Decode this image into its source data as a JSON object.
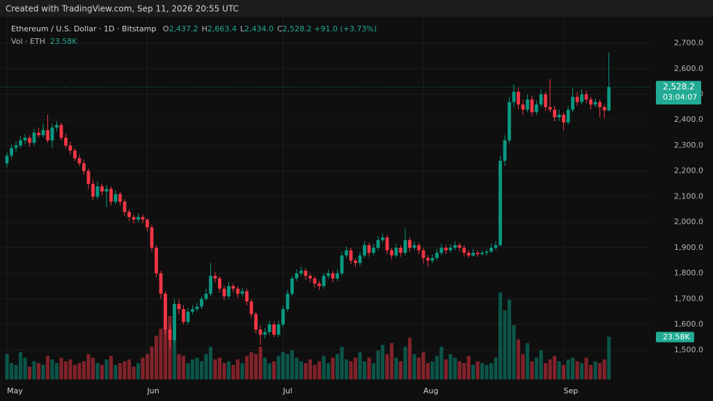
{
  "chart_data": {
    "type": "candlestick",
    "watermark": "Created with TradingView.com, Sep 11, 2026 20:55 UTC",
    "title": "Ethereum / U.S. Dollar · 1D · Bitstamp",
    "legend": {
      "labels": [
        "O",
        "H",
        "L",
        "C"
      ],
      "value_labels": [
        "2,437.2",
        "2,663.4",
        "2,434.0",
        "2,528.2"
      ],
      "change_label": "+91.0 (+3.73%)"
    },
    "volume_title": "Vol · ETH",
    "volume_label": "23.58K",
    "last_price_label": "2,528.2",
    "countdown": "03:04:07",
    "up_color": "#089981",
    "down_color": "#f23645",
    "ylim": [
      1385,
      2760
    ],
    "yticks": [
      {
        "value": 1500,
        "label": "1,500.0"
      },
      {
        "value": 1600,
        "label": "1,600.0"
      },
      {
        "value": 1700,
        "label": "1,700.0"
      },
      {
        "value": 1800,
        "label": "1,800.0"
      },
      {
        "value": 1900,
        "label": "1,900.0"
      },
      {
        "value": 2000,
        "label": "2,000.0"
      },
      {
        "value": 2100,
        "label": "2,100.0"
      },
      {
        "value": 2200,
        "label": "2,200.0"
      },
      {
        "value": 2300,
        "label": "2,300.0"
      },
      {
        "value": 2400,
        "label": "2,400.0"
      },
      {
        "value": 2500,
        "label": "2,500.0"
      },
      {
        "value": 2600,
        "label": "2,600.0"
      },
      {
        "value": 2700,
        "label": "2,700.0"
      }
    ],
    "xticks": [
      {
        "value": 0,
        "label": "May"
      },
      {
        "value": 31,
        "label": "Jun"
      },
      {
        "value": 61,
        "label": "Jul"
      },
      {
        "value": 92,
        "label": "Aug"
      },
      {
        "value": 123,
        "label": "Sep"
      }
    ],
    "ohlc": [
      [
        2230,
        2275,
        2215,
        2260
      ],
      [
        2260,
        2305,
        2250,
        2290
      ],
      [
        2290,
        2315,
        2275,
        2300
      ],
      [
        2300,
        2335,
        2290,
        2320
      ],
      [
        2320,
        2345,
        2305,
        2330
      ],
      [
        2330,
        2340,
        2295,
        2310
      ],
      [
        2310,
        2365,
        2300,
        2350
      ],
      [
        2350,
        2370,
        2330,
        2340
      ],
      [
        2340,
        2385,
        2330,
        2360
      ],
      [
        2360,
        2420,
        2310,
        2320
      ],
      [
        2320,
        2385,
        2290,
        2370
      ],
      [
        2370,
        2395,
        2355,
        2380
      ],
      [
        2380,
        2390,
        2320,
        2330
      ],
      [
        2330,
        2345,
        2290,
        2300
      ],
      [
        2300,
        2315,
        2265,
        2280
      ],
      [
        2280,
        2290,
        2240,
        2250
      ],
      [
        2250,
        2265,
        2220,
        2230
      ],
      [
        2230,
        2245,
        2185,
        2200
      ],
      [
        2200,
        2210,
        2130,
        2150
      ],
      [
        2150,
        2165,
        2085,
        2100
      ],
      [
        2100,
        2160,
        2090,
        2140
      ],
      [
        2140,
        2150,
        2105,
        2120
      ],
      [
        2120,
        2145,
        2060,
        2130
      ],
      [
        2130,
        2140,
        2065,
        2080
      ],
      [
        2080,
        2125,
        2070,
        2110
      ],
      [
        2110,
        2120,
        2065,
        2080
      ],
      [
        2080,
        2090,
        2025,
        2040
      ],
      [
        2040,
        2050,
        2005,
        2020
      ],
      [
        2020,
        2030,
        1995,
        2010
      ],
      [
        2010,
        2035,
        2000,
        2020
      ],
      [
        2020,
        2030,
        1995,
        2010
      ],
      [
        2010,
        2015,
        1965,
        1980
      ],
      [
        1980,
        1990,
        1885,
        1900
      ],
      [
        1900,
        1910,
        1785,
        1800
      ],
      [
        1800,
        1810,
        1700,
        1720
      ],
      [
        1720,
        1730,
        1560,
        1580
      ],
      [
        1580,
        1600,
        1510,
        1540
      ],
      [
        1540,
        1700,
        1530,
        1680
      ],
      [
        1680,
        1700,
        1640,
        1660
      ],
      [
        1660,
        1675,
        1600,
        1610
      ],
      [
        1610,
        1665,
        1600,
        1650
      ],
      [
        1650,
        1675,
        1640,
        1660
      ],
      [
        1660,
        1685,
        1650,
        1670
      ],
      [
        1670,
        1710,
        1660,
        1700
      ],
      [
        1700,
        1740,
        1690,
        1720
      ],
      [
        1720,
        1840,
        1710,
        1790
      ],
      [
        1790,
        1805,
        1765,
        1780
      ],
      [
        1780,
        1790,
        1725,
        1740
      ],
      [
        1740,
        1750,
        1695,
        1710
      ],
      [
        1710,
        1765,
        1700,
        1750
      ],
      [
        1750,
        1760,
        1725,
        1740
      ],
      [
        1740,
        1750,
        1705,
        1720
      ],
      [
        1720,
        1745,
        1710,
        1730
      ],
      [
        1730,
        1740,
        1675,
        1690
      ],
      [
        1690,
        1700,
        1625,
        1640
      ],
      [
        1640,
        1650,
        1565,
        1580
      ],
      [
        1580,
        1595,
        1520,
        1560
      ],
      [
        1560,
        1585,
        1545,
        1570
      ],
      [
        1570,
        1615,
        1560,
        1600
      ],
      [
        1600,
        1610,
        1550,
        1560
      ],
      [
        1560,
        1615,
        1550,
        1600
      ],
      [
        1600,
        1675,
        1590,
        1660
      ],
      [
        1660,
        1735,
        1650,
        1720
      ],
      [
        1720,
        1790,
        1710,
        1780
      ],
      [
        1780,
        1815,
        1770,
        1800
      ],
      [
        1800,
        1825,
        1790,
        1810
      ],
      [
        1810,
        1820,
        1775,
        1790
      ],
      [
        1790,
        1800,
        1765,
        1780
      ],
      [
        1780,
        1790,
        1745,
        1760
      ],
      [
        1760,
        1770,
        1735,
        1750
      ],
      [
        1750,
        1800,
        1740,
        1790
      ],
      [
        1790,
        1815,
        1780,
        1800
      ],
      [
        1800,
        1810,
        1765,
        1780
      ],
      [
        1780,
        1815,
        1770,
        1800
      ],
      [
        1800,
        1885,
        1790,
        1870
      ],
      [
        1870,
        1905,
        1860,
        1890
      ],
      [
        1890,
        1900,
        1835,
        1850
      ],
      [
        1850,
        1860,
        1825,
        1840
      ],
      [
        1840,
        1885,
        1830,
        1870
      ],
      [
        1870,
        1925,
        1860,
        1910
      ],
      [
        1910,
        1920,
        1865,
        1880
      ],
      [
        1880,
        1915,
        1870,
        1900
      ],
      [
        1900,
        1945,
        1890,
        1930
      ],
      [
        1930,
        1955,
        1920,
        1940
      ],
      [
        1940,
        1950,
        1875,
        1890
      ],
      [
        1890,
        1900,
        1855,
        1870
      ],
      [
        1870,
        1915,
        1860,
        1900
      ],
      [
        1900,
        1910,
        1865,
        1880
      ],
      [
        1880,
        1975,
        1870,
        1930
      ],
      [
        1930,
        1940,
        1885,
        1900
      ],
      [
        1900,
        1925,
        1890,
        1910
      ],
      [
        1910,
        1920,
        1875,
        1890
      ],
      [
        1890,
        1900,
        1840,
        1860
      ],
      [
        1860,
        1870,
        1825,
        1850
      ],
      [
        1850,
        1875,
        1840,
        1860
      ],
      [
        1860,
        1895,
        1850,
        1880
      ],
      [
        1880,
        1915,
        1870,
        1900
      ],
      [
        1900,
        1910,
        1875,
        1890
      ],
      [
        1890,
        1915,
        1880,
        1900
      ],
      [
        1900,
        1925,
        1890,
        1910
      ],
      [
        1910,
        1920,
        1885,
        1900
      ],
      [
        1900,
        1910,
        1865,
        1880
      ],
      [
        1880,
        1890,
        1860,
        1870
      ],
      [
        1870,
        1895,
        1865,
        1880
      ],
      [
        1880,
        1890,
        1865,
        1875
      ],
      [
        1875,
        1890,
        1870,
        1880
      ],
      [
        1880,
        1895,
        1870,
        1885
      ],
      [
        1885,
        1915,
        1880,
        1900
      ],
      [
        1900,
        1925,
        1890,
        1910
      ],
      [
        1910,
        2260,
        1905,
        2240
      ],
      [
        2240,
        2340,
        2220,
        2320
      ],
      [
        2320,
        2490,
        2310,
        2470
      ],
      [
        2470,
        2540,
        2450,
        2510
      ],
      [
        2510,
        2530,
        2440,
        2460
      ],
      [
        2460,
        2480,
        2420,
        2440
      ],
      [
        2440,
        2500,
        2430,
        2480
      ],
      [
        2480,
        2495,
        2415,
        2430
      ],
      [
        2430,
        2475,
        2420,
        2460
      ],
      [
        2460,
        2520,
        2450,
        2500
      ],
      [
        2500,
        2510,
        2435,
        2450
      ],
      [
        2450,
        2560,
        2430,
        2440
      ],
      [
        2440,
        2455,
        2395,
        2410
      ],
      [
        2410,
        2440,
        2395,
        2420
      ],
      [
        2420,
        2430,
        2360,
        2390
      ],
      [
        2390,
        2455,
        2380,
        2440
      ],
      [
        2440,
        2525,
        2430,
        2490
      ],
      [
        2490,
        2510,
        2455,
        2470
      ],
      [
        2470,
        2520,
        2460,
        2500
      ],
      [
        2500,
        2515,
        2465,
        2480
      ],
      [
        2480,
        2490,
        2440,
        2460
      ],
      [
        2460,
        2485,
        2450,
        2470
      ],
      [
        2470,
        2480,
        2410,
        2450
      ],
      [
        2450,
        2460,
        2405,
        2437.2
      ],
      [
        2437.2,
        2663.4,
        2434.0,
        2528.2
      ]
    ],
    "volume": [
      14000,
      9000,
      8000,
      15000,
      12000,
      7000,
      10000,
      9000,
      8000,
      13000,
      11000,
      9000,
      12000,
      10000,
      11000,
      8000,
      9000,
      10000,
      14000,
      12000,
      9000,
      8000,
      11000,
      13000,
      8000,
      9000,
      10000,
      11000,
      7000,
      9000,
      12000,
      14000,
      18000,
      24000,
      28000,
      30000,
      35000,
      22000,
      14000,
      13000,
      9000,
      11000,
      12000,
      10000,
      14000,
      18000,
      11000,
      12000,
      9000,
      10000,
      8000,
      11000,
      9000,
      13000,
      15000,
      14000,
      18000,
      12000,
      9000,
      10000,
      13000,
      15000,
      14000,
      16000,
      12000,
      10000,
      9000,
      11000,
      8000,
      10000,
      13000,
      9000,
      12000,
      14000,
      18000,
      11000,
      10000,
      12000,
      15000,
      10000,
      12000,
      9000,
      16000,
      19000,
      14000,
      20000,
      12000,
      10000,
      18000,
      23000,
      14000,
      12000,
      15000,
      9000,
      10000,
      13000,
      18000,
      11000,
      14000,
      12000,
      10000,
      9000,
      13000,
      8000,
      10000,
      9000,
      8000,
      9000,
      12000,
      48000,
      38000,
      44000,
      30000,
      22000,
      14000,
      20000,
      10000,
      12000,
      16000,
      9000,
      11000,
      13000,
      10000,
      8000,
      11000,
      12000,
      10000,
      9000,
      12000,
      8000,
      10000,
      9000,
      11000,
      23580
    ]
  }
}
